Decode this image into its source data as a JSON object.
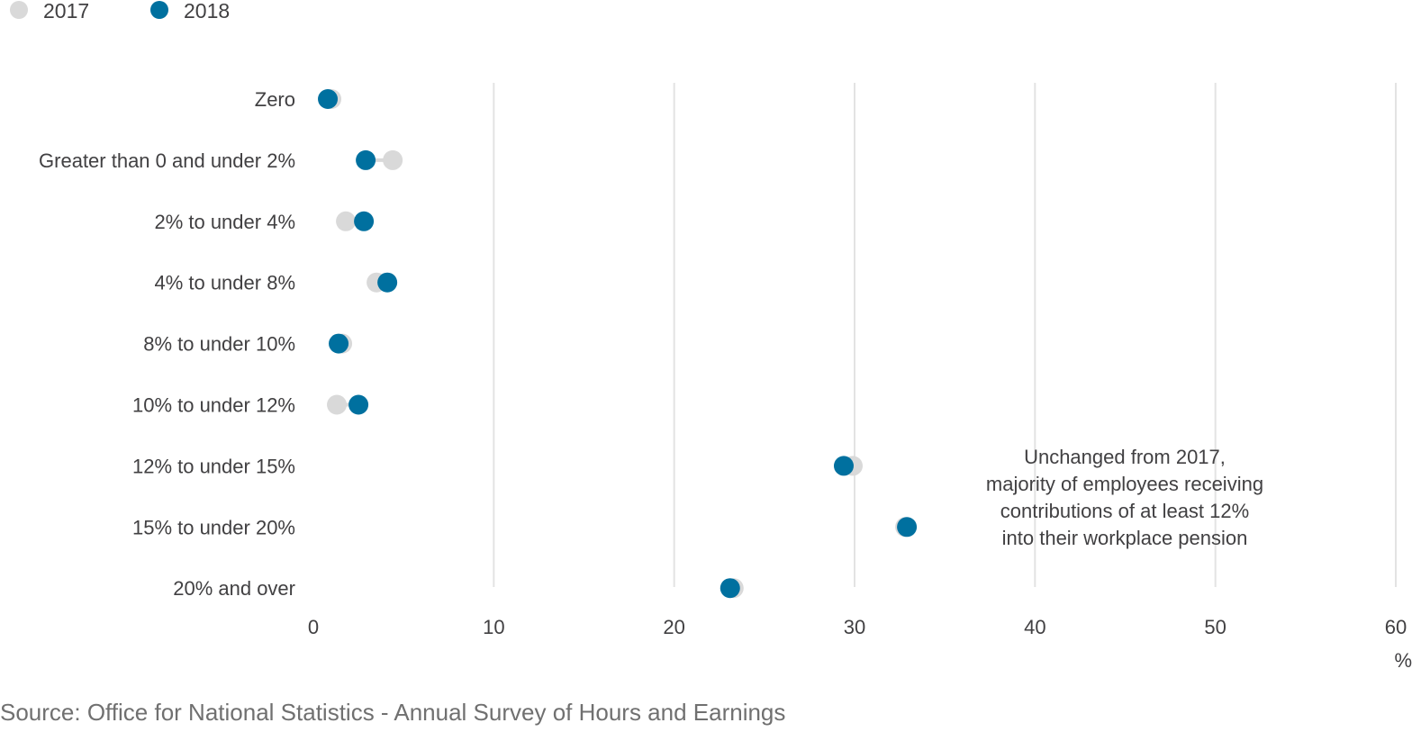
{
  "legend": {
    "items": [
      {
        "label": "2017",
        "color": "#d9d9d9"
      },
      {
        "label": "2018",
        "color": "#00709f"
      }
    ]
  },
  "annotation": {
    "lines": [
      "Unchanged from 2017,",
      "majority of employees receiving",
      "contributions of at least 12%",
      "into their workplace pension"
    ]
  },
  "source": "Source: Office for National Statistics - Annual Survey of Hours and Earnings",
  "chart_data": {
    "type": "scatter",
    "categories": [
      "Zero",
      "Greater than 0 and under 2%",
      "2% to under 4%",
      "4% to under 8%",
      "8% to under 10%",
      "10% to under 12%",
      "12% to under 15%",
      "15% to under 20%",
      "20% and over"
    ],
    "series": [
      {
        "name": "2017",
        "color": "#d9d9d9",
        "values": [
          1.0,
          4.4,
          1.8,
          3.5,
          1.6,
          1.3,
          29.9,
          32.8,
          23.3
        ]
      },
      {
        "name": "2018",
        "color": "#00709f",
        "values": [
          0.8,
          2.9,
          2.8,
          4.1,
          1.4,
          2.5,
          29.4,
          32.9,
          23.1
        ]
      }
    ],
    "x_ticks": [
      "0",
      "10",
      "20",
      "30",
      "40",
      "50",
      "60"
    ],
    "xlim": [
      0,
      60
    ],
    "xunit": "%",
    "grid": "vertical",
    "legend_position": "top-left"
  }
}
